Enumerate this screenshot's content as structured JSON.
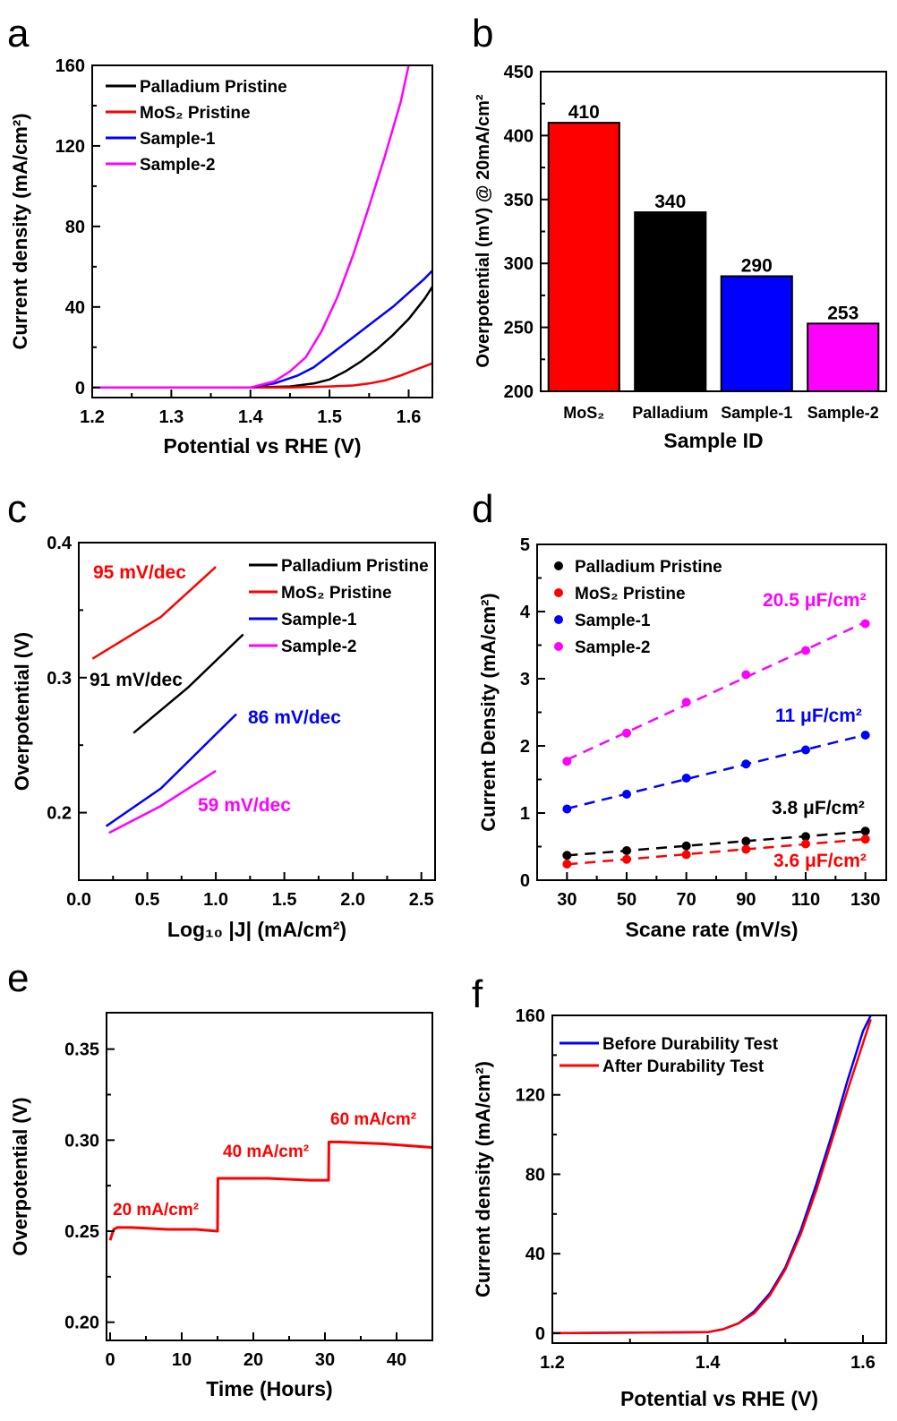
{
  "figure": {
    "panel_letters": [
      "a",
      "b",
      "c",
      "d",
      "e",
      "f"
    ]
  },
  "chart_data": [
    {
      "panel": "a",
      "type": "line",
      "xlabel": "Potential vs RHE (V)",
      "ylabel": "Current density (mA/cm²)",
      "xlim": [
        1.2,
        1.63
      ],
      "ylim": [
        -5,
        160
      ],
      "xticks": [
        1.2,
        1.3,
        1.4,
        1.5,
        1.6
      ],
      "yticks": [
        0,
        40,
        80,
        120,
        160
      ],
      "legend_position": "top-left",
      "series": [
        {
          "name": "Palladium Pristine",
          "color": "#000000",
          "x": [
            1.2,
            1.4,
            1.45,
            1.48,
            1.5,
            1.52,
            1.54,
            1.56,
            1.58,
            1.6,
            1.62,
            1.63
          ],
          "y": [
            0,
            0,
            0.5,
            2,
            4,
            8,
            13,
            19,
            26,
            34,
            44,
            50
          ]
        },
        {
          "name": "MoS₂ Pristine",
          "color": "#ff0000",
          "x": [
            1.2,
            1.45,
            1.5,
            1.53,
            1.55,
            1.57,
            1.59,
            1.61,
            1.63
          ],
          "y": [
            0,
            0,
            0.5,
            1,
            2,
            3.5,
            6,
            9,
            12
          ]
        },
        {
          "name": "Sample-1",
          "color": "#0000ff",
          "x": [
            1.2,
            1.4,
            1.43,
            1.46,
            1.48,
            1.5,
            1.52,
            1.54,
            1.56,
            1.58,
            1.6,
            1.62,
            1.63
          ],
          "y": [
            0,
            0,
            2,
            6,
            10,
            16,
            22,
            28,
            34,
            40,
            47,
            54,
            58
          ]
        },
        {
          "name": "Sample-2",
          "color": "#ff00ff",
          "x": [
            1.2,
            1.4,
            1.43,
            1.45,
            1.47,
            1.49,
            1.51,
            1.53,
            1.55,
            1.57,
            1.59,
            1.6
          ],
          "y": [
            0,
            0,
            3,
            8,
            15,
            28,
            45,
            66,
            90,
            115,
            142,
            160
          ]
        }
      ]
    },
    {
      "panel": "b",
      "type": "bar",
      "xlabel": "Sample ID",
      "ylabel": "Overpotential (mV) @ 20mA/cm²",
      "ylim": [
        200,
        450
      ],
      "yticks": [
        200,
        250,
        300,
        350,
        400,
        450
      ],
      "categories": [
        "MoS₂",
        "Palladium",
        "Sample-1",
        "Sample-2"
      ],
      "values": [
        410,
        340,
        290,
        253
      ],
      "colors": [
        "#ff0000",
        "#000000",
        "#0000ff",
        "#ff00ff"
      ],
      "data_labels": [
        "410",
        "340",
        "290",
        "253"
      ]
    },
    {
      "panel": "c",
      "type": "line",
      "xlabel": "Log₁₀ |J| (mA/cm²)",
      "ylabel": "Overpotential (V)",
      "xlim": [
        0.0,
        2.6
      ],
      "ylim": [
        0.15,
        0.4
      ],
      "xticks": [
        0.0,
        0.5,
        1.0,
        1.5,
        2.0,
        2.5
      ],
      "yticks": [
        0.2,
        0.3,
        0.4
      ],
      "legend_position": "top-right",
      "series": [
        {
          "name": "Palladium Pristine",
          "color": "#000000",
          "x": [
            0.4,
            0.8,
            1.2
          ],
          "y": [
            0.259,
            0.293,
            0.332
          ]
        },
        {
          "name": "MoS₂ Pristine",
          "color": "#ff0000",
          "x": [
            0.1,
            0.6,
            1.0
          ],
          "y": [
            0.314,
            0.345,
            0.382
          ]
        },
        {
          "name": "Sample-1",
          "color": "#0000ff",
          "x": [
            0.2,
            0.6,
            1.15
          ],
          "y": [
            0.19,
            0.218,
            0.273
          ]
        },
        {
          "name": "Sample-2",
          "color": "#ff00ff",
          "x": [
            0.22,
            0.6,
            1.0
          ],
          "y": [
            0.185,
            0.205,
            0.231
          ]
        }
      ],
      "annotations": [
        {
          "text": "95 mV/dec",
          "color": "#ff0000"
        },
        {
          "text": "91 mV/dec",
          "color": "#000000"
        },
        {
          "text": "86 mV/dec",
          "color": "#0000ff"
        },
        {
          "text": "59 mV/dec",
          "color": "#ff00ff"
        }
      ]
    },
    {
      "panel": "d",
      "type": "scatter",
      "xlabel": "Scane rate (mV/s)",
      "ylabel": "Current Density (mA/cm²)",
      "xlim": [
        20,
        137
      ],
      "ylim": [
        0,
        5
      ],
      "xticks": [
        30,
        50,
        70,
        90,
        110,
        130
      ],
      "yticks": [
        0,
        1,
        2,
        3,
        4,
        5
      ],
      "legend_position": "top-left",
      "x": [
        30,
        50,
        70,
        90,
        110,
        130
      ],
      "series": [
        {
          "name": "Palladium Pristine",
          "color": "#000000",
          "values": [
            0.37,
            0.44,
            0.51,
            0.58,
            0.65,
            0.73
          ],
          "fit": "3.8 μF/cm²"
        },
        {
          "name": "MoS₂ Pristine",
          "color": "#ff0000",
          "values": [
            0.24,
            0.31,
            0.38,
            0.46,
            0.54,
            0.61
          ],
          "fit": "3.6 μF/cm²"
        },
        {
          "name": "Sample-1",
          "color": "#0000ff",
          "values": [
            1.06,
            1.28,
            1.52,
            1.73,
            1.94,
            2.16
          ],
          "fit": "11 μF/cm²"
        },
        {
          "name": "Sample-2",
          "color": "#ff00ff",
          "values": [
            1.77,
            2.19,
            2.65,
            3.06,
            3.42,
            3.82
          ],
          "fit": "20.5 μF/cm²"
        }
      ]
    },
    {
      "panel": "e",
      "type": "line",
      "xlabel": "Time (Hours)",
      "ylabel": "Overpotential (V)",
      "xlim": [
        -0.5,
        45
      ],
      "ylim": [
        0.19,
        0.37
      ],
      "xticks": [
        0,
        10,
        20,
        30,
        40
      ],
      "yticks": [
        0.2,
        0.25,
        0.3,
        0.35
      ],
      "series": [
        {
          "name": "",
          "color": "#ff0000",
          "x": [
            0,
            0.5,
            1,
            3,
            8,
            12,
            15,
            15.05,
            16,
            22,
            28,
            30.5,
            30.55,
            32,
            38,
            45
          ],
          "y": [
            0.245,
            0.251,
            0.252,
            0.252,
            0.251,
            0.251,
            0.25,
            0.279,
            0.279,
            0.279,
            0.278,
            0.278,
            0.299,
            0.299,
            0.298,
            0.296
          ]
        }
      ],
      "annotations": [
        {
          "text": "20 mA/cm²",
          "color": "#ff0000"
        },
        {
          "text": "40 mA/cm²",
          "color": "#ff0000"
        },
        {
          "text": "60 mA/cm²",
          "color": "#ff0000"
        }
      ]
    },
    {
      "panel": "f",
      "type": "line",
      "xlabel": "Potential vs RHE (V)",
      "ylabel": "Current density (mA/cm²)",
      "xlim": [
        1.2,
        1.63
      ],
      "ylim": [
        -5,
        160
      ],
      "xticks": [
        1.2,
        1.4,
        1.6
      ],
      "yticks": [
        0,
        40,
        80,
        120,
        160
      ],
      "legend_position": "top-left",
      "series": [
        {
          "name": "Before Durability Test",
          "color": "#0000ff",
          "x": [
            1.2,
            1.4,
            1.42,
            1.44,
            1.46,
            1.48,
            1.5,
            1.52,
            1.54,
            1.56,
            1.58,
            1.6,
            1.61
          ],
          "y": [
            0,
            0.5,
            2,
            5,
            11,
            20,
            33,
            52,
            75,
            100,
            127,
            152,
            160
          ]
        },
        {
          "name": "After Durability Test",
          "color": "#ff0000",
          "x": [
            1.2,
            1.4,
            1.42,
            1.44,
            1.46,
            1.48,
            1.5,
            1.52,
            1.54,
            1.56,
            1.58,
            1.6,
            1.61
          ],
          "y": [
            0,
            0.5,
            2,
            5,
            10,
            19,
            32,
            50,
            72,
            97,
            122,
            146,
            158
          ]
        }
      ]
    }
  ]
}
